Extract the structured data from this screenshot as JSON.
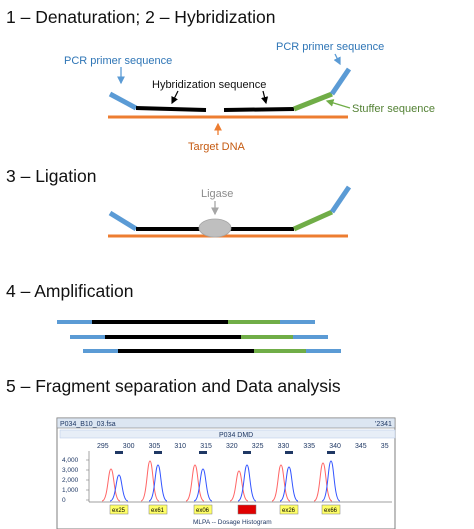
{
  "steps": [
    {
      "title": "1 – Denaturation; 2 – Hybridization"
    },
    {
      "title": "3 – Ligation"
    },
    {
      "title": "4 – Amplification"
    },
    {
      "title": "5 – Fragment separation and Data analysis"
    }
  ],
  "labels": {
    "primer_left": "PCR primer sequence",
    "primer_right": "PCR primer sequence",
    "hybridization": "Hybridization sequence",
    "stuffer": "Stuffer sequence",
    "target": "Target DNA",
    "ligase": "Ligase"
  },
  "colors": {
    "primer": "#5b9bd5",
    "probe": "#000000",
    "stuffer": "#70ad47",
    "target": "#ed7d31",
    "ligase": "#bfbfbf",
    "text_blue": "#2e75b6",
    "text_green": "#548235",
    "text_orange": "#c55a11",
    "curve_blue": "#3355ff",
    "curve_red": "#ff6666"
  },
  "screenshot": {
    "window_title": "P034_B10_03.fsa",
    "window_title_right": "'2341",
    "panel_label": "P034 DMD",
    "x_ticks": [
      "295",
      "300",
      "305",
      "310",
      "315",
      "320",
      "325",
      "330",
      "335",
      "340",
      "345",
      "35"
    ],
    "y_ticks": [
      "4,000",
      "3,000",
      "2,000",
      "1,000",
      "0"
    ],
    "exon_labels": [
      "ex25",
      "ex61",
      "ex06",
      "",
      "ex26",
      "ex66"
    ],
    "footer": "MLPA -- Dosage Histogram"
  }
}
